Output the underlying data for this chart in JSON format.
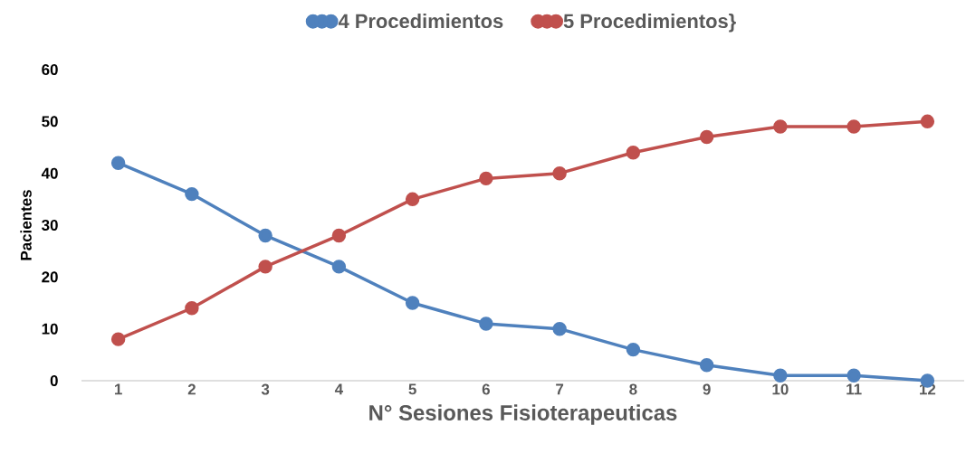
{
  "chart_data": {
    "type": "line",
    "xlabel": "N° Sesiones Fisioterapeuticas",
    "ylabel": "Pacientes",
    "categories": [
      "1",
      "2",
      "3",
      "4",
      "5",
      "6",
      "7",
      "8",
      "9",
      "10",
      "11",
      "12"
    ],
    "series": [
      {
        "name": "4 Procedimientos",
        "color": "#4f81bd",
        "values": [
          42,
          36,
          28,
          22,
          15,
          11,
          10,
          6,
          3,
          1,
          1,
          0
        ]
      },
      {
        "name": "5 Procedimientos}",
        "color": "#c0504d",
        "values": [
          8,
          14,
          22,
          28,
          35,
          39,
          40,
          44,
          47,
          49,
          49,
          50
        ]
      }
    ],
    "ylim": [
      0,
      60
    ],
    "yticks": [
      0,
      10,
      20,
      30,
      40,
      50,
      60
    ],
    "legend": "top",
    "marker": "circle",
    "line_style": "solid"
  }
}
